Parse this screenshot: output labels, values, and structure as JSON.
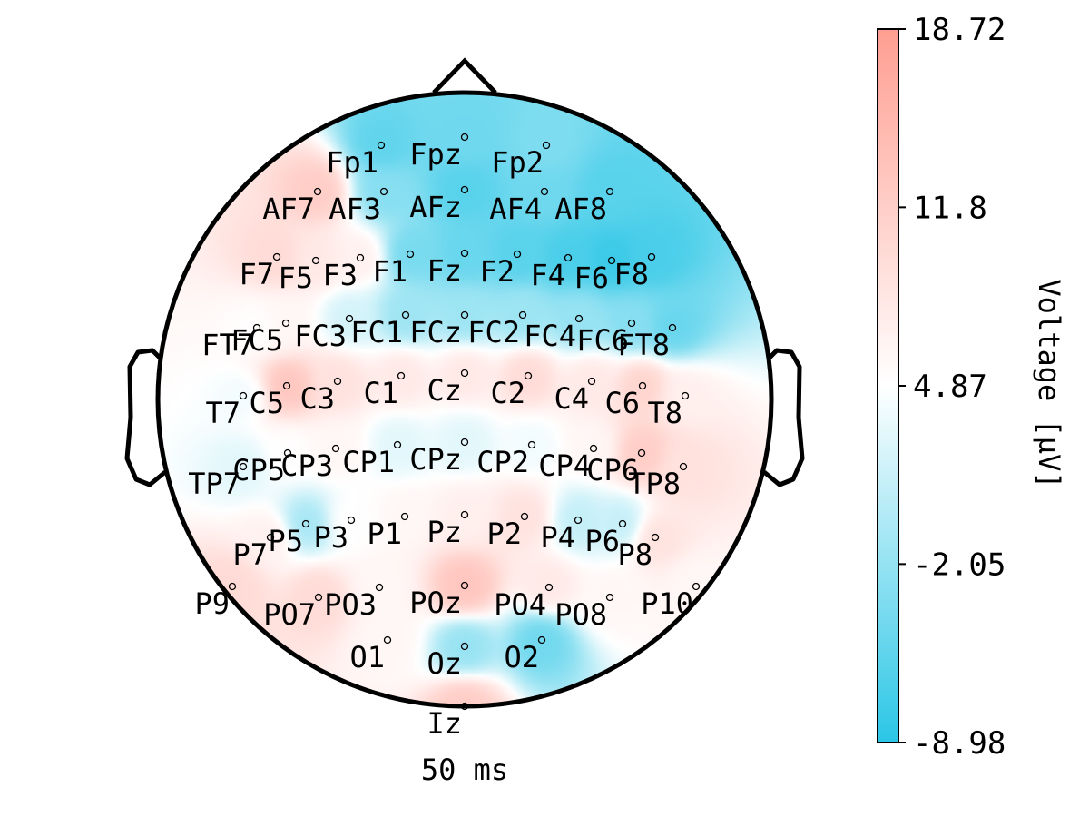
{
  "chart_data": {
    "type": "heatmap",
    "subtype": "eeg-topomap",
    "time_label": "50 ms",
    "colorbar": {
      "label": "Voltage [µV]",
      "min": -8.98,
      "max": 18.72,
      "ticks": [
        "18.72",
        "11.8",
        "4.87",
        "-2.05",
        "-8.98"
      ],
      "tick_values": [
        18.72,
        11.8,
        4.87,
        -2.05,
        -8.98
      ],
      "colors": {
        "low": "#2bc6e6",
        "mid": "#ffffff",
        "high": "#ff9e91"
      }
    },
    "electrodes": [
      {
        "name": "Fp1",
        "value": -5.5
      },
      {
        "name": "Fpz",
        "value": -4.5
      },
      {
        "name": "Fp2",
        "value": -3.5
      },
      {
        "name": "AF7",
        "value": 12.0
      },
      {
        "name": "AF3",
        "value": -3.0
      },
      {
        "name": "AFz",
        "value": -6.0
      },
      {
        "name": "AF4",
        "value": -4.5
      },
      {
        "name": "AF8",
        "value": -6.0
      },
      {
        "name": "F7",
        "value": 10.0
      },
      {
        "name": "F5",
        "value": 8.0
      },
      {
        "name": "F3",
        "value": 7.0
      },
      {
        "name": "F1",
        "value": -4.0
      },
      {
        "name": "Fz",
        "value": -5.0
      },
      {
        "name": "F2",
        "value": -6.0
      },
      {
        "name": "F4",
        "value": -7.0
      },
      {
        "name": "F6",
        "value": -8.0
      },
      {
        "name": "F8",
        "value": -7.0
      },
      {
        "name": "FT7",
        "value": 5.0
      },
      {
        "name": "FC5",
        "value": 6.0
      },
      {
        "name": "FC3",
        "value": 2.0
      },
      {
        "name": "FC1",
        "value": -1.5
      },
      {
        "name": "FCz",
        "value": -1.5
      },
      {
        "name": "FC2",
        "value": -1.5
      },
      {
        "name": "FC4",
        "value": -2.0
      },
      {
        "name": "FC6",
        "value": -3.0
      },
      {
        "name": "FT8",
        "value": -5.0
      },
      {
        "name": "T7",
        "value": 4.0
      },
      {
        "name": "C5",
        "value": 13.0
      },
      {
        "name": "C3",
        "value": 9.0
      },
      {
        "name": "C1",
        "value": 8.0
      },
      {
        "name": "Cz",
        "value": 8.0
      },
      {
        "name": "C2",
        "value": 10.0
      },
      {
        "name": "C4",
        "value": 8.0
      },
      {
        "name": "C6",
        "value": 11.0
      },
      {
        "name": "T8",
        "value": 7.0
      },
      {
        "name": "TP7",
        "value": 3.0
      },
      {
        "name": "CP5",
        "value": 5.0
      },
      {
        "name": "CP3",
        "value": 6.0
      },
      {
        "name": "CP1",
        "value": 3.0
      },
      {
        "name": "CPz",
        "value": 3.0
      },
      {
        "name": "CP2",
        "value": 4.0
      },
      {
        "name": "CP4",
        "value": 6.0
      },
      {
        "name": "CP6",
        "value": 12.0
      },
      {
        "name": "TP8",
        "value": 9.0
      },
      {
        "name": "P7",
        "value": 7.0
      },
      {
        "name": "P5",
        "value": -1.0
      },
      {
        "name": "P3",
        "value": 5.0
      },
      {
        "name": "P1",
        "value": 6.0
      },
      {
        "name": "Pz",
        "value": 7.0
      },
      {
        "name": "P2",
        "value": 9.0
      },
      {
        "name": "P4",
        "value": 1.0
      },
      {
        "name": "P6",
        "value": 1.0
      },
      {
        "name": "P8",
        "value": 9.0
      },
      {
        "name": "P9",
        "value": 10.0
      },
      {
        "name": "PO7",
        "value": 10.0
      },
      {
        "name": "PO3",
        "value": 6.0
      },
      {
        "name": "POz",
        "value": 13.0
      },
      {
        "name": "PO4",
        "value": 8.0
      },
      {
        "name": "PO8",
        "value": 6.0
      },
      {
        "name": "P10",
        "value": 6.0
      },
      {
        "name": "O1",
        "value": 6.0
      },
      {
        "name": "Oz",
        "value": -2.0
      },
      {
        "name": "O2",
        "value": -4.5
      },
      {
        "name": "Iz",
        "value": 12.0
      }
    ]
  }
}
